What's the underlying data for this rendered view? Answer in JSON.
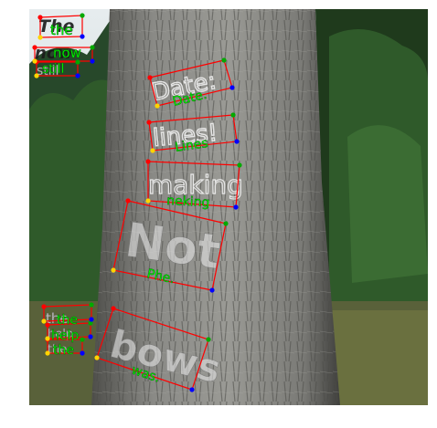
{
  "image": {
    "subject": "tree-trunk-with-chalk-writing",
    "colors": {
      "background": "#ffffff",
      "sky": "#dfe7ea",
      "foliage_dark": "#1f3a1c",
      "foliage_mid": "#2f5a2a",
      "bark": "#8a8a86",
      "bark_dark": "#5c5c58",
      "grass": "#59613a",
      "box_stroke": "#ff0000",
      "label_fill": "#00ff00",
      "corner_red": "#ff0000",
      "corner_green": "#00aa00",
      "corner_blue": "#0000ff",
      "corner_yellow": "#ffd400"
    }
  },
  "bark_words": [
    "The",
    "now",
    "still",
    "Date:",
    "lines!",
    "making",
    "Not",
    "the",
    "help",
    "the",
    "bows"
  ],
  "detections": [
    {
      "id": "det-1",
      "label": "the"
    },
    {
      "id": "det-2",
      "label": "now"
    },
    {
      "id": "det-3",
      "label": "still"
    },
    {
      "id": "det-4",
      "label": "Date."
    },
    {
      "id": "det-5",
      "label": "Lines"
    },
    {
      "id": "det-6",
      "label": "neking"
    },
    {
      "id": "det-7",
      "label": "Phe."
    },
    {
      "id": "det-8",
      "label": "the"
    },
    {
      "id": "det-9",
      "label": "help"
    },
    {
      "id": "det-10",
      "label": "the"
    },
    {
      "id": "det-11",
      "label": "was."
    }
  ]
}
